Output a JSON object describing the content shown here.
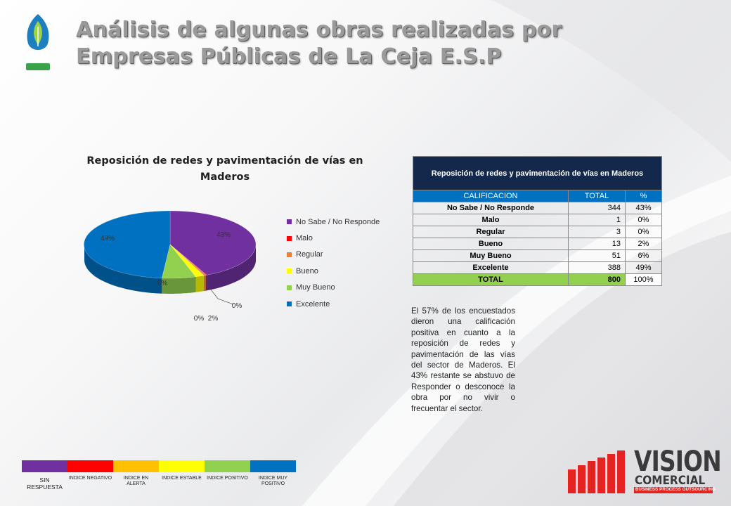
{
  "header": {
    "title_line1": "Análisis de algunas obras realizadas por",
    "title_line2": "Empresas Públicas de La Ceja E.S.P"
  },
  "colors": {
    "no_sabe": "#7030a0",
    "malo": "#ff0000",
    "regular": "#ed7d31",
    "bueno": "#ffff00",
    "muy_bueno": "#92d050",
    "excelente": "#0070c0",
    "table_title_bg": "#13284a",
    "table_header_bg": "#0070c0",
    "total_row_bg": "#93d050"
  },
  "chart_data": {
    "type": "pie",
    "title_line1": "Reposición de redes y pavimentación de vías en",
    "title_line2": "Maderos",
    "categories": [
      "No Sabe / No Responde",
      "Malo",
      "Regular",
      "Bueno",
      "Muy Bueno",
      "Excelente"
    ],
    "values": [
      344,
      1,
      3,
      13,
      51,
      388
    ],
    "data_labels": [
      "43%",
      "0%",
      "0%",
      "2%",
      "6%",
      "49%"
    ],
    "legend_placement": "right",
    "three_d": true
  },
  "table": {
    "title": "Reposición de redes y pavimentación de vías en Maderos",
    "headers": [
      "CALIFICACION",
      "TOTAL",
      "%"
    ],
    "rows": [
      {
        "label": "No Sabe / No Responde",
        "total": "344",
        "pct": "43%"
      },
      {
        "label": "Malo",
        "total": "1",
        "pct": "0%"
      },
      {
        "label": "Regular",
        "total": "3",
        "pct": "0%"
      },
      {
        "label": "Bueno",
        "total": "13",
        "pct": "2%"
      },
      {
        "label": "Muy Bueno",
        "total": "51",
        "pct": "6%"
      },
      {
        "label": "Excelente",
        "total": "388",
        "pct": "49%"
      }
    ],
    "total": {
      "label": "TOTAL",
      "total": "800",
      "pct": "100%"
    }
  },
  "paragraph": "El 57% de los encuestados dieron una calificación positiva en cuanto a la reposición de redes y pavimentación de las vías del sector de Maderos. El 43% restante se abstuvo de Responder o desconoce la obra por no vivir o frecuentar el sector.",
  "scale": [
    {
      "label": "SIN RESPUESTA",
      "color": "#7030a0"
    },
    {
      "label": "INDICE NEGATIVO",
      "color": "#ff0000"
    },
    {
      "label": "INDICE EN ALERTA",
      "color": "#ffc000"
    },
    {
      "label": "INDICE ESTABLE",
      "color": "#ffff00"
    },
    {
      "label": "INDICE POSITIVO",
      "color": "#92d050"
    },
    {
      "label": "INDICE MUY POSITIVO",
      "color": "#0070c0"
    }
  ],
  "brand": {
    "word1": "VISION",
    "word2": "COMERCIAL",
    "tagline": "BUSINESS PROCESS OUTSOURCING"
  }
}
